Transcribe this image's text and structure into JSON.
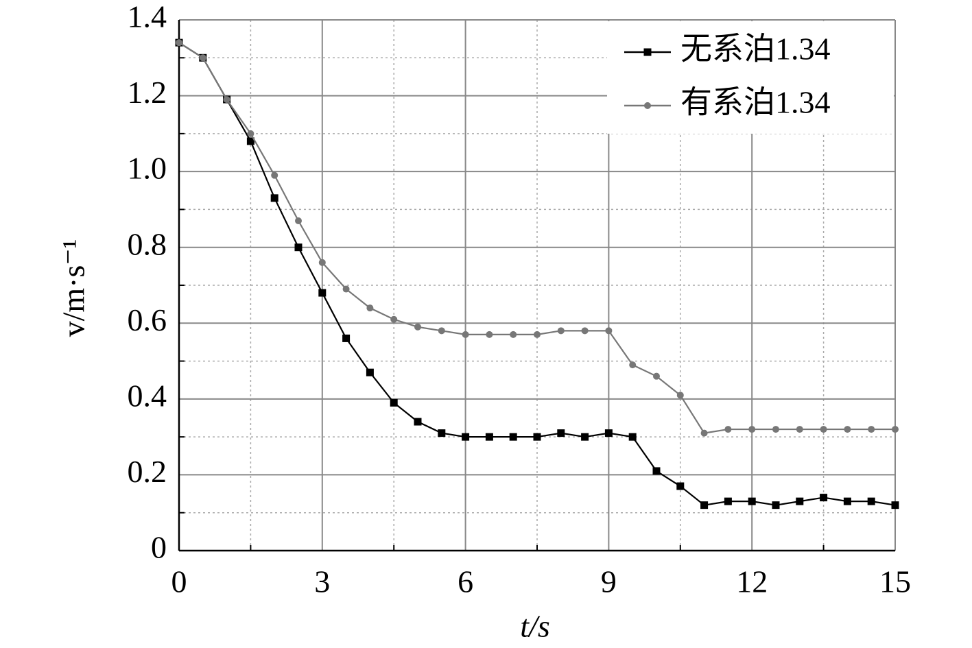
{
  "chart_data": {
    "type": "line",
    "xlabel": "t/s",
    "ylabel": "v/m·s⁻¹",
    "x": [
      0,
      0.5,
      1,
      1.5,
      2,
      2.5,
      3,
      3.5,
      4,
      4.5,
      5,
      5.5,
      6,
      6.5,
      7,
      7.5,
      8,
      8.5,
      9,
      9.5,
      10,
      10.5,
      11,
      11.5,
      12,
      12.5,
      13,
      13.5,
      14,
      14.5,
      15
    ],
    "series": [
      {
        "name": "无系泊1.34",
        "color": "#000000",
        "marker": "square",
        "values": [
          1.34,
          1.3,
          1.19,
          1.08,
          0.93,
          0.8,
          0.68,
          0.56,
          0.47,
          0.39,
          0.34,
          0.31,
          0.3,
          0.3,
          0.3,
          0.3,
          0.31,
          0.3,
          0.31,
          0.3,
          0.21,
          0.17,
          0.12,
          0.13,
          0.13,
          0.12,
          0.13,
          0.14,
          0.13,
          0.13,
          0.12
        ]
      },
      {
        "name": "有系泊1.34",
        "color": "#777777",
        "marker": "circle",
        "values": [
          1.34,
          1.3,
          1.19,
          1.1,
          0.99,
          0.87,
          0.76,
          0.69,
          0.64,
          0.61,
          0.59,
          0.58,
          0.57,
          0.57,
          0.57,
          0.57,
          0.58,
          0.58,
          0.58,
          0.49,
          0.46,
          0.41,
          0.31,
          0.32,
          0.32,
          0.32,
          0.32,
          0.32,
          0.32,
          0.32,
          0.32
        ]
      }
    ],
    "xlim": [
      0,
      15
    ],
    "xticks": [
      0,
      3,
      6,
      9,
      12,
      15
    ],
    "xminorticks": [
      1.5,
      4.5,
      7.5,
      10.5,
      13.5
    ],
    "ylim": [
      0,
      1.4
    ],
    "yticks": [
      0,
      0.2,
      0.4,
      0.6,
      0.8,
      {
        "value": 1,
        "label": "1.0"
      },
      1.2,
      1.4
    ],
    "yminorticks": [
      0.1,
      0.3,
      0.5,
      0.7,
      0.9,
      1.1,
      1.3
    ],
    "grid": true,
    "legend": "upper right"
  }
}
